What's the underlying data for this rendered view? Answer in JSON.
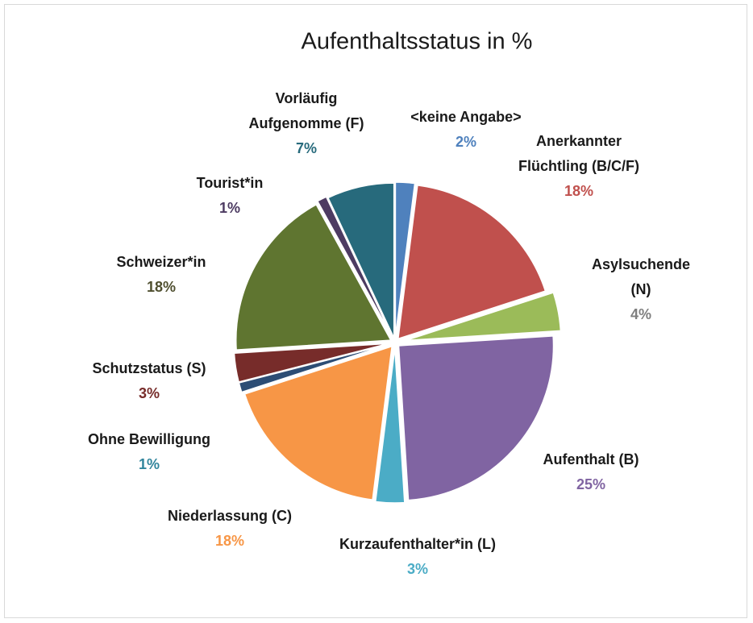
{
  "chart_data": {
    "type": "pie",
    "title": "Aufenthaltsstatus in %",
    "categories": [
      "<keine Angabe>",
      "Anerkannter Flüchtling (B/C/F)",
      "Asylsuchende (N)",
      "Aufenthalt (B)",
      "Kurzaufenthalter*in (L)",
      "Niederlassung (C)",
      "Ohne Bewilligung",
      "Schutzstatus (S)",
      "Schweizer*in",
      "Tourist*in",
      "Vorläufig Aufgenomme (F)"
    ],
    "values": [
      2,
      18,
      4,
      25,
      3,
      18,
      1,
      3,
      18,
      1,
      7
    ],
    "value_labels": [
      "2%",
      "18%",
      "4%",
      "25%",
      "3%",
      "18%",
      "1%",
      "3%",
      "18%",
      "1%",
      "7%"
    ],
    "colors": [
      "#4f81bd",
      "#c0504d",
      "#9bbb59",
      "#8064a2",
      "#4bacc6",
      "#f79646",
      "#2c4d75",
      "#772c2a",
      "#5f7530",
      "#4d3b62",
      "#276a7c"
    ],
    "label_colors": [
      "#4f81bd",
      "#c0504d",
      "#7f7f7f",
      "#8064a2",
      "#4bacc6",
      "#f79646",
      "#31859c",
      "#772c2a",
      "#4f4f2f",
      "#4d3b62",
      "#276a7c"
    ]
  }
}
